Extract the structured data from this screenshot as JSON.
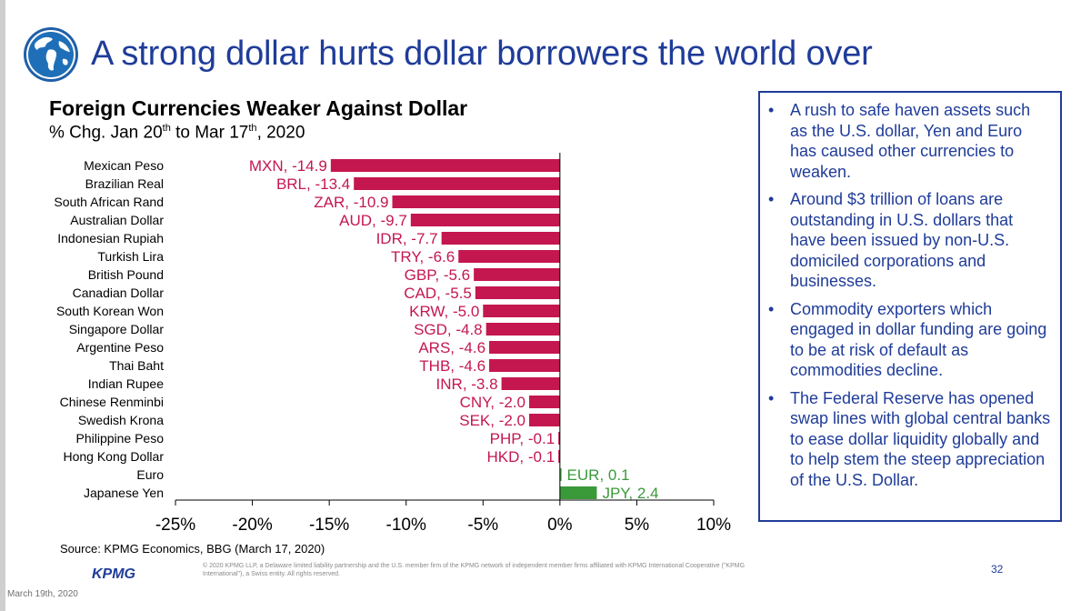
{
  "slide": {
    "title": "A strong dollar hurts dollar borrowers the world over",
    "chart_title": "Foreign Currencies Weaker Against Dollar",
    "subtitle_a": "% Chg. Jan 20",
    "subtitle_sup1": "th",
    "subtitle_b": " to Mar 17",
    "subtitle_sup2": "th",
    "subtitle_c": ", 2020",
    "source": "Source: KPMG Economics, BBG (March 17, 2020)",
    "logo_text": "KPMG",
    "footnote": "© 2020 KPMG LLP, a Delaware limited liability partnership and the U.S. member firm of the KPMG network of independent member firms affiliated with KPMG International Cooperative (\"KPMG International\"), a Swiss entity. All rights reserved.",
    "page_number": "32",
    "date_footer": "March 19th, 2020",
    "globe_icon": "globe-icon",
    "bullets": [
      "A rush to safe haven assets such as the U.S. dollar, Yen and Euro has caused other currencies to weaken.",
      "Around $3 trillion of loans are outstanding in U.S. dollars that have been issued by non-U.S. domiciled corporations and businesses.",
      "Commodity exporters which engaged in dollar funding are going to be at risk of default as commodities decline.",
      "The Federal Reserve has opened swap lines with global central banks to ease dollar liquidity globally and to help stem the steep appreciation of the U.S. Dollar."
    ],
    "bullet_marker": "•"
  },
  "colors": {
    "title_blue": "#1f3c99",
    "negative": "#c4174f",
    "positive": "#3a9a3a"
  },
  "chart_data": {
    "type": "bar",
    "orientation": "horizontal",
    "categories": [
      "Mexican Peso",
      "Brazilian Real",
      "South African Rand",
      "Australian Dollar",
      "Indonesian Rupiah",
      "Turkish Lira",
      "British Pound",
      "Canadian Dollar",
      "South Korean Won",
      "Singapore Dollar",
      "Argentine Peso",
      "Thai Baht",
      "Indian Rupee",
      "Chinese Renminbi",
      "Swedish Krona",
      "Philippine Peso",
      "Hong Kong Dollar",
      "Euro",
      "Japanese Yen"
    ],
    "codes": [
      "MXN",
      "BRL",
      "ZAR",
      "AUD",
      "IDR",
      "TRY",
      "GBP",
      "CAD",
      "KRW",
      "SGD",
      "ARS",
      "THB",
      "INR",
      "CNY",
      "SEK",
      "PHP",
      "HKD",
      "EUR",
      "JPY"
    ],
    "values": [
      -14.9,
      -13.4,
      -10.9,
      -9.7,
      -7.7,
      -6.6,
      -5.6,
      -5.5,
      -5.0,
      -4.8,
      -4.6,
      -4.6,
      -3.8,
      -2.0,
      -2.0,
      -0.1,
      -0.1,
      0.1,
      2.4
    ],
    "data_labels": [
      "MXN, -14.9",
      "BRL, -13.4",
      "ZAR, -10.9",
      "AUD, -9.7",
      "IDR, -7.7",
      "TRY, -6.6",
      "GBP, -5.6",
      "CAD, -5.5",
      "KRW, -5.0",
      "SGD, -4.8",
      "ARS, -4.6",
      "THB, -4.6",
      "INR, -3.8",
      "CNY, -2.0",
      "SEK, -2.0",
      "PHP, -0.1",
      "HKD, -0.1",
      "EUR, 0.1",
      "JPY, 2.4"
    ],
    "xlim": [
      -25,
      10
    ],
    "xticks": [
      -25,
      -20,
      -15,
      -10,
      -5,
      0,
      5,
      10
    ],
    "xtick_labels": [
      "-25%",
      "-20%",
      "-15%",
      "-10%",
      "-5%",
      "0%",
      "5%",
      "10%"
    ],
    "grid": false,
    "legend": "none"
  }
}
